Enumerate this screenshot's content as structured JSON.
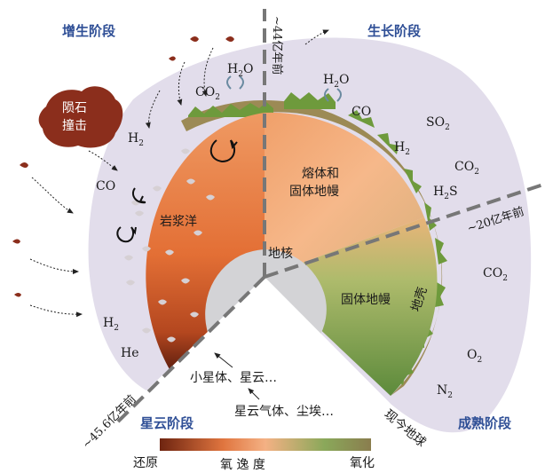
{
  "stages": {
    "accretion": "增生阶段",
    "growth": "生长阶段",
    "nebula": "星云阶段",
    "mature": "成熟阶段"
  },
  "times": {
    "t44": "~44亿年前",
    "t20": "~20亿年前",
    "t456": "~45.6亿年前",
    "today": "现今地球"
  },
  "regions": {
    "meteorite": [
      "陨石",
      "撞击"
    ],
    "magma_ocean": "岩浆洋",
    "melt_mantle": [
      "熔体和",
      "固体地幔"
    ],
    "core": "地核",
    "solid_mantle": "固体地幔",
    "crust": "地壳",
    "planetesimals": "小星体、星云…",
    "nebula_gas": "星云气体、尘埃…"
  },
  "gases": {
    "h2o_left": "H",
    "h2o_left_sub": "2",
    "h2o_left_o": "O",
    "co2_left": "CO",
    "co2_left_sub": "2",
    "h2_left": "H",
    "h2_left_sub": "2",
    "co_left": "CO",
    "h2_low": "H",
    "h2_low_sub": "2",
    "he": "He",
    "h2o_right": "H",
    "h2o_right_sub": "2",
    "h2o_right_o": "O",
    "co_right": "CO",
    "so2": "SO",
    "so2_sub": "2",
    "h2_right": "H",
    "h2_right_sub": "2",
    "co2_right": "CO",
    "co2_right_sub": "2",
    "h2s": "H",
    "h2s_sub": "2",
    "h2s_s": "S",
    "co2_far": "CO",
    "co2_far_sub": "2",
    "o2": "O",
    "o2_sub": "2",
    "n2": "N",
    "n2_sub": "2"
  },
  "legend": {
    "left": "还原",
    "center": "氧 逸 度",
    "right": "氧化",
    "colors": [
      "#6e2410",
      "#e0753f",
      "#f4b184",
      "#8aa85a",
      "#8a7d4e"
    ]
  }
}
